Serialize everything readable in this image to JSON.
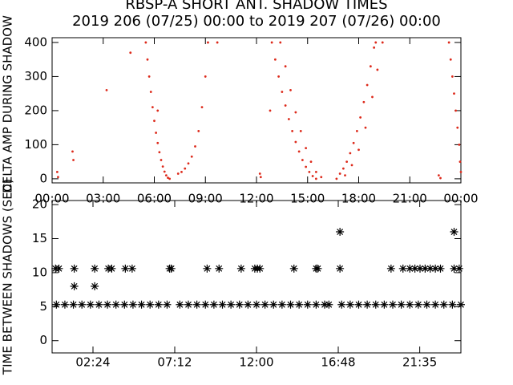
{
  "chart_data": [
    {
      "type": "scatter",
      "title": "RBSP-A SHORT ANT. SHADOW TIMES",
      "subtitle": "2019 206 (07/25) 00:00 to 2019 207 (07/26) 00:00",
      "ylabel": "DELTA AMP DURING SHADOW",
      "color": "#dd2a1b",
      "xlim": [
        0,
        24
      ],
      "ylim": [
        -12,
        414
      ],
      "xticks": [
        {
          "value": 0,
          "label": "00:00"
        },
        {
          "value": 3,
          "label": "03:00"
        },
        {
          "value": 6,
          "label": "06:00"
        },
        {
          "value": 9,
          "label": "09:00"
        },
        {
          "value": 12,
          "label": "12:00"
        },
        {
          "value": 15,
          "label": "15:00"
        },
        {
          "value": 18,
          "label": "18:00"
        },
        {
          "value": 21,
          "label": "21:00"
        },
        {
          "value": 24,
          "label": "00:00"
        }
      ],
      "yticks": [
        0,
        100,
        200,
        300,
        400
      ],
      "x": [
        5.5,
        5.6,
        5.7,
        5.8,
        5.9,
        6.0,
        6.1,
        6.2,
        6.3,
        6.4,
        6.5,
        6.6,
        6.7,
        6.8,
        6.9,
        7.4,
        7.6,
        7.8,
        8.0,
        8.2,
        8.4,
        8.6,
        8.8,
        9.0,
        9.15,
        12.9,
        13.1,
        13.3,
        13.5,
        13.7,
        13.9,
        14.1,
        14.3,
        14.5,
        14.7,
        14.9,
        15.1,
        15.3,
        15.5,
        13.4,
        13.7,
        14.0,
        14.3,
        14.6,
        14.9,
        15.2,
        15.5,
        15.8,
        16.7,
        16.9,
        17.1,
        17.3,
        17.5,
        17.7,
        17.9,
        18.1,
        18.3,
        18.5,
        18.7,
        18.9,
        19.0,
        17.2,
        17.6,
        18.0,
        18.4,
        18.8,
        19.1,
        19.4,
        22.7,
        22.8,
        23.3,
        23.4,
        23.5,
        23.6,
        23.7,
        23.8,
        23.9,
        23.95,
        24,
        0.3,
        0.35,
        1.2,
        1.25,
        12.2,
        12.25,
        3.2,
        4.6,
        6.2,
        9.7,
        12.8
      ],
      "y": [
        400,
        350,
        300,
        255,
        210,
        170,
        135,
        105,
        78,
        55,
        36,
        21,
        10,
        3,
        0,
        15,
        20,
        30,
        45,
        65,
        95,
        140,
        210,
        300,
        400,
        400,
        350,
        300,
        255,
        215,
        175,
        140,
        108,
        80,
        55,
        35,
        20,
        8,
        0,
        400,
        330,
        260,
        195,
        140,
        90,
        50,
        20,
        5,
        0,
        15,
        30,
        50,
        75,
        105,
        140,
        180,
        225,
        275,
        330,
        385,
        400,
        10,
        40,
        85,
        150,
        240,
        320,
        400,
        10,
        2,
        400,
        350,
        300,
        250,
        200,
        150,
        100,
        50,
        20,
        20,
        5,
        80,
        55,
        15,
        5,
        260,
        370,
        200,
        400,
        200
      ]
    },
    {
      "type": "scatter",
      "ylabel": "TIME BETWEEN SHADOWS (SEC)",
      "color": "#000000",
      "marker": "asterisk",
      "xlim": [
        0,
        24
      ],
      "ylim": [
        -1.8,
        20.6
      ],
      "xticks": [
        {
          "value": 2.4,
          "label": "02:24"
        },
        {
          "value": 7.2,
          "label": "07:12"
        },
        {
          "value": 12,
          "label": "12:00"
        },
        {
          "value": 16.8,
          "label": "16:48"
        },
        {
          "value": 21.583,
          "label": "21:35"
        }
      ],
      "yticks": [
        0,
        5,
        10,
        15,
        20
      ],
      "x": [
        0.25,
        0.75,
        1.25,
        1.75,
        2.25,
        2.75,
        3.25,
        3.75,
        4.25,
        4.75,
        5.25,
        5.75,
        6.25,
        6.75,
        7.5,
        8,
        8.5,
        9,
        9.5,
        10,
        10.5,
        11,
        11.5,
        12,
        12.5,
        13,
        13.5,
        14,
        14.5,
        15,
        15.5,
        16,
        16.25,
        17,
        17.5,
        18,
        18.5,
        19,
        19.5,
        20,
        20.5,
        21,
        21.5,
        22,
        22.5,
        23,
        23.5,
        24,
        0.2,
        0.4,
        1.3,
        2.5,
        3.3,
        3.5,
        4.3,
        4.7,
        6.9,
        7.0,
        9.1,
        9.8,
        11.1,
        11.9,
        12.05,
        12.2,
        14.2,
        15.5,
        15.6,
        16.9,
        19.9,
        20.6,
        21.0,
        21.3,
        21.6,
        21.9,
        22.2,
        22.5,
        22.8,
        23.6,
        23.9,
        1.3,
        2.5,
        16.9,
        23.6
      ],
      "y": [
        5.3,
        5.3,
        5.3,
        5.3,
        5.3,
        5.3,
        5.3,
        5.3,
        5.3,
        5.3,
        5.3,
        5.3,
        5.3,
        5.3,
        5.3,
        5.3,
        5.3,
        5.3,
        5.3,
        5.3,
        5.3,
        5.3,
        5.3,
        5.3,
        5.3,
        5.3,
        5.3,
        5.3,
        5.3,
        5.3,
        5.3,
        5.3,
        5.3,
        5.3,
        5.3,
        5.3,
        5.3,
        5.3,
        5.3,
        5.3,
        5.3,
        5.3,
        5.3,
        5.3,
        5.3,
        5.3,
        5.3,
        5.3,
        10.6,
        10.6,
        10.6,
        10.6,
        10.6,
        10.6,
        10.6,
        10.6,
        10.6,
        10.6,
        10.6,
        10.6,
        10.6,
        10.6,
        10.6,
        10.6,
        10.6,
        10.6,
        10.6,
        10.6,
        10.6,
        10.6,
        10.6,
        10.6,
        10.6,
        10.6,
        10.6,
        10.6,
        10.6,
        10.6,
        10.6,
        8,
        8,
        16,
        16
      ]
    }
  ]
}
